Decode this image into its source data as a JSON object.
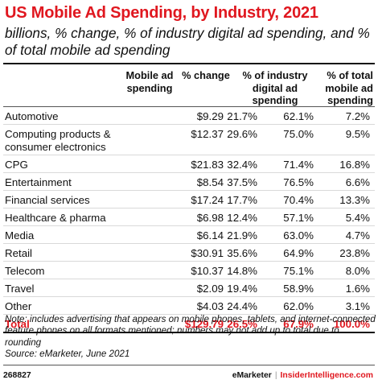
{
  "title": "US Mobile Ad Spending, by Industry, 2021",
  "subtitle": "billions, % change, % of industry digital ad spending, and % of total mobile ad spending",
  "columns": [
    "Mobile ad spending",
    "% change",
    "% of industry digital ad spending",
    "% of total mobile ad spending"
  ],
  "rows": [
    {
      "label": "Automotive",
      "spend": "$9.29",
      "change": "21.7%",
      "industry": "62.1%",
      "total": "7.2%"
    },
    {
      "label": "Computing products & consumer electronics",
      "spend": "$12.37",
      "change": "29.6%",
      "industry": "75.0%",
      "total": "9.5%"
    },
    {
      "label": "CPG",
      "spend": "$21.83",
      "change": "32.4%",
      "industry": "71.4%",
      "total": "16.8%"
    },
    {
      "label": "Entertainment",
      "spend": "$8.54",
      "change": "37.5%",
      "industry": "76.5%",
      "total": "6.6%"
    },
    {
      "label": "Financial services",
      "spend": "$17.24",
      "change": "17.7%",
      "industry": "70.4%",
      "total": "13.3%"
    },
    {
      "label": "Healthcare & pharma",
      "spend": "$6.98",
      "change": "12.4%",
      "industry": "57.1%",
      "total": "5.4%"
    },
    {
      "label": "Media",
      "spend": "$6.14",
      "change": "21.9%",
      "industry": "63.0%",
      "total": "4.7%"
    },
    {
      "label": "Retail",
      "spend": "$30.91",
      "change": "35.6%",
      "industry": "64.9%",
      "total": "23.8%"
    },
    {
      "label": "Telecom",
      "spend": "$10.37",
      "change": "14.8%",
      "industry": "75.1%",
      "total": "8.0%"
    },
    {
      "label": "Travel",
      "spend": "$2.09",
      "change": "19.4%",
      "industry": "58.9%",
      "total": "1.6%"
    },
    {
      "label": "Other",
      "spend": "$4.03",
      "change": "24.4%",
      "industry": "62.0%",
      "total": "3.1%"
    }
  ],
  "total": {
    "label": "Total",
    "spend": "$129.79",
    "change": "26.5%",
    "industry": "67.9%",
    "total": "100.0%"
  },
  "note": "Note: includes advertising that appears on mobile phones, tablets, and internet-connected feature phones on all formats mentioned; numbers may not add up to total due to rounding",
  "source": "Source: eMarketer, June 2021",
  "chart_id": "268827",
  "brand": "eMarketer",
  "brand_separator": "|",
  "brand2": "InsiderIntelligence.com",
  "colors": {
    "accent": "#e0171f",
    "text": "#111111",
    "row_divider": "#d9d9d9"
  }
}
